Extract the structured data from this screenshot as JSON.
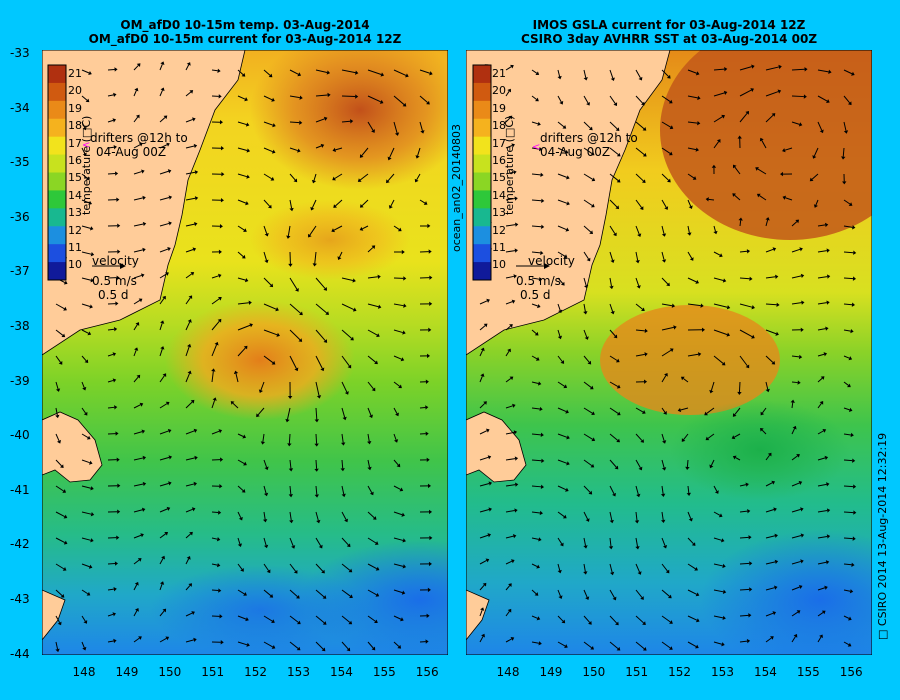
{
  "left_panel": {
    "title_line1": "OM_afD0 10-15m temp. 03-Aug-2014",
    "title_line2": "OM_afD0 10-15m current for 03-Aug-2014 12Z"
  },
  "right_panel": {
    "title_line1": "IMOS GSLA current for 03-Aug-2014 12Z",
    "title_line2": "CSIRO 3day AVHRR SST at 03-Aug-2014 00Z"
  },
  "y_ticks": [
    "-33",
    "-34",
    "-35",
    "-36",
    "-37",
    "-38",
    "-39",
    "-40",
    "-41",
    "-42",
    "-43",
    "-44"
  ],
  "x_ticks": [
    "148",
    "149",
    "150",
    "151",
    "152",
    "153",
    "154",
    "155",
    "156"
  ],
  "colorbar": {
    "title": "temperature (□C)",
    "labels": [
      "21",
      "20",
      "19",
      "18",
      "17",
      "16",
      "15",
      "14",
      "13",
      "12",
      "11",
      "10"
    ],
    "colors": [
      "#b03010",
      "#d05a10",
      "#ea8a18",
      "#f5b21e",
      "#f2e31c",
      "#c8e21e",
      "#8bd624",
      "#2ec83a",
      "#18b890",
      "#1c8fe0",
      "#1c4fe0",
      "#101a9a"
    ]
  },
  "legend": {
    "drifters_line1": "drifters @12h to",
    "drifters_line2": "04-Aug 00Z",
    "velocity": "velocity",
    "speed": "0.5 m/s",
    "duration": "0.5 d"
  },
  "middle_label": "ocean_an02_20140803",
  "right_side_label": "□ CSIRO 2014   13-Aug-2014 12:32:19",
  "colors": {
    "background": "#00c8ff",
    "land": "#ffcc99",
    "marker": "#ff00ff"
  }
}
